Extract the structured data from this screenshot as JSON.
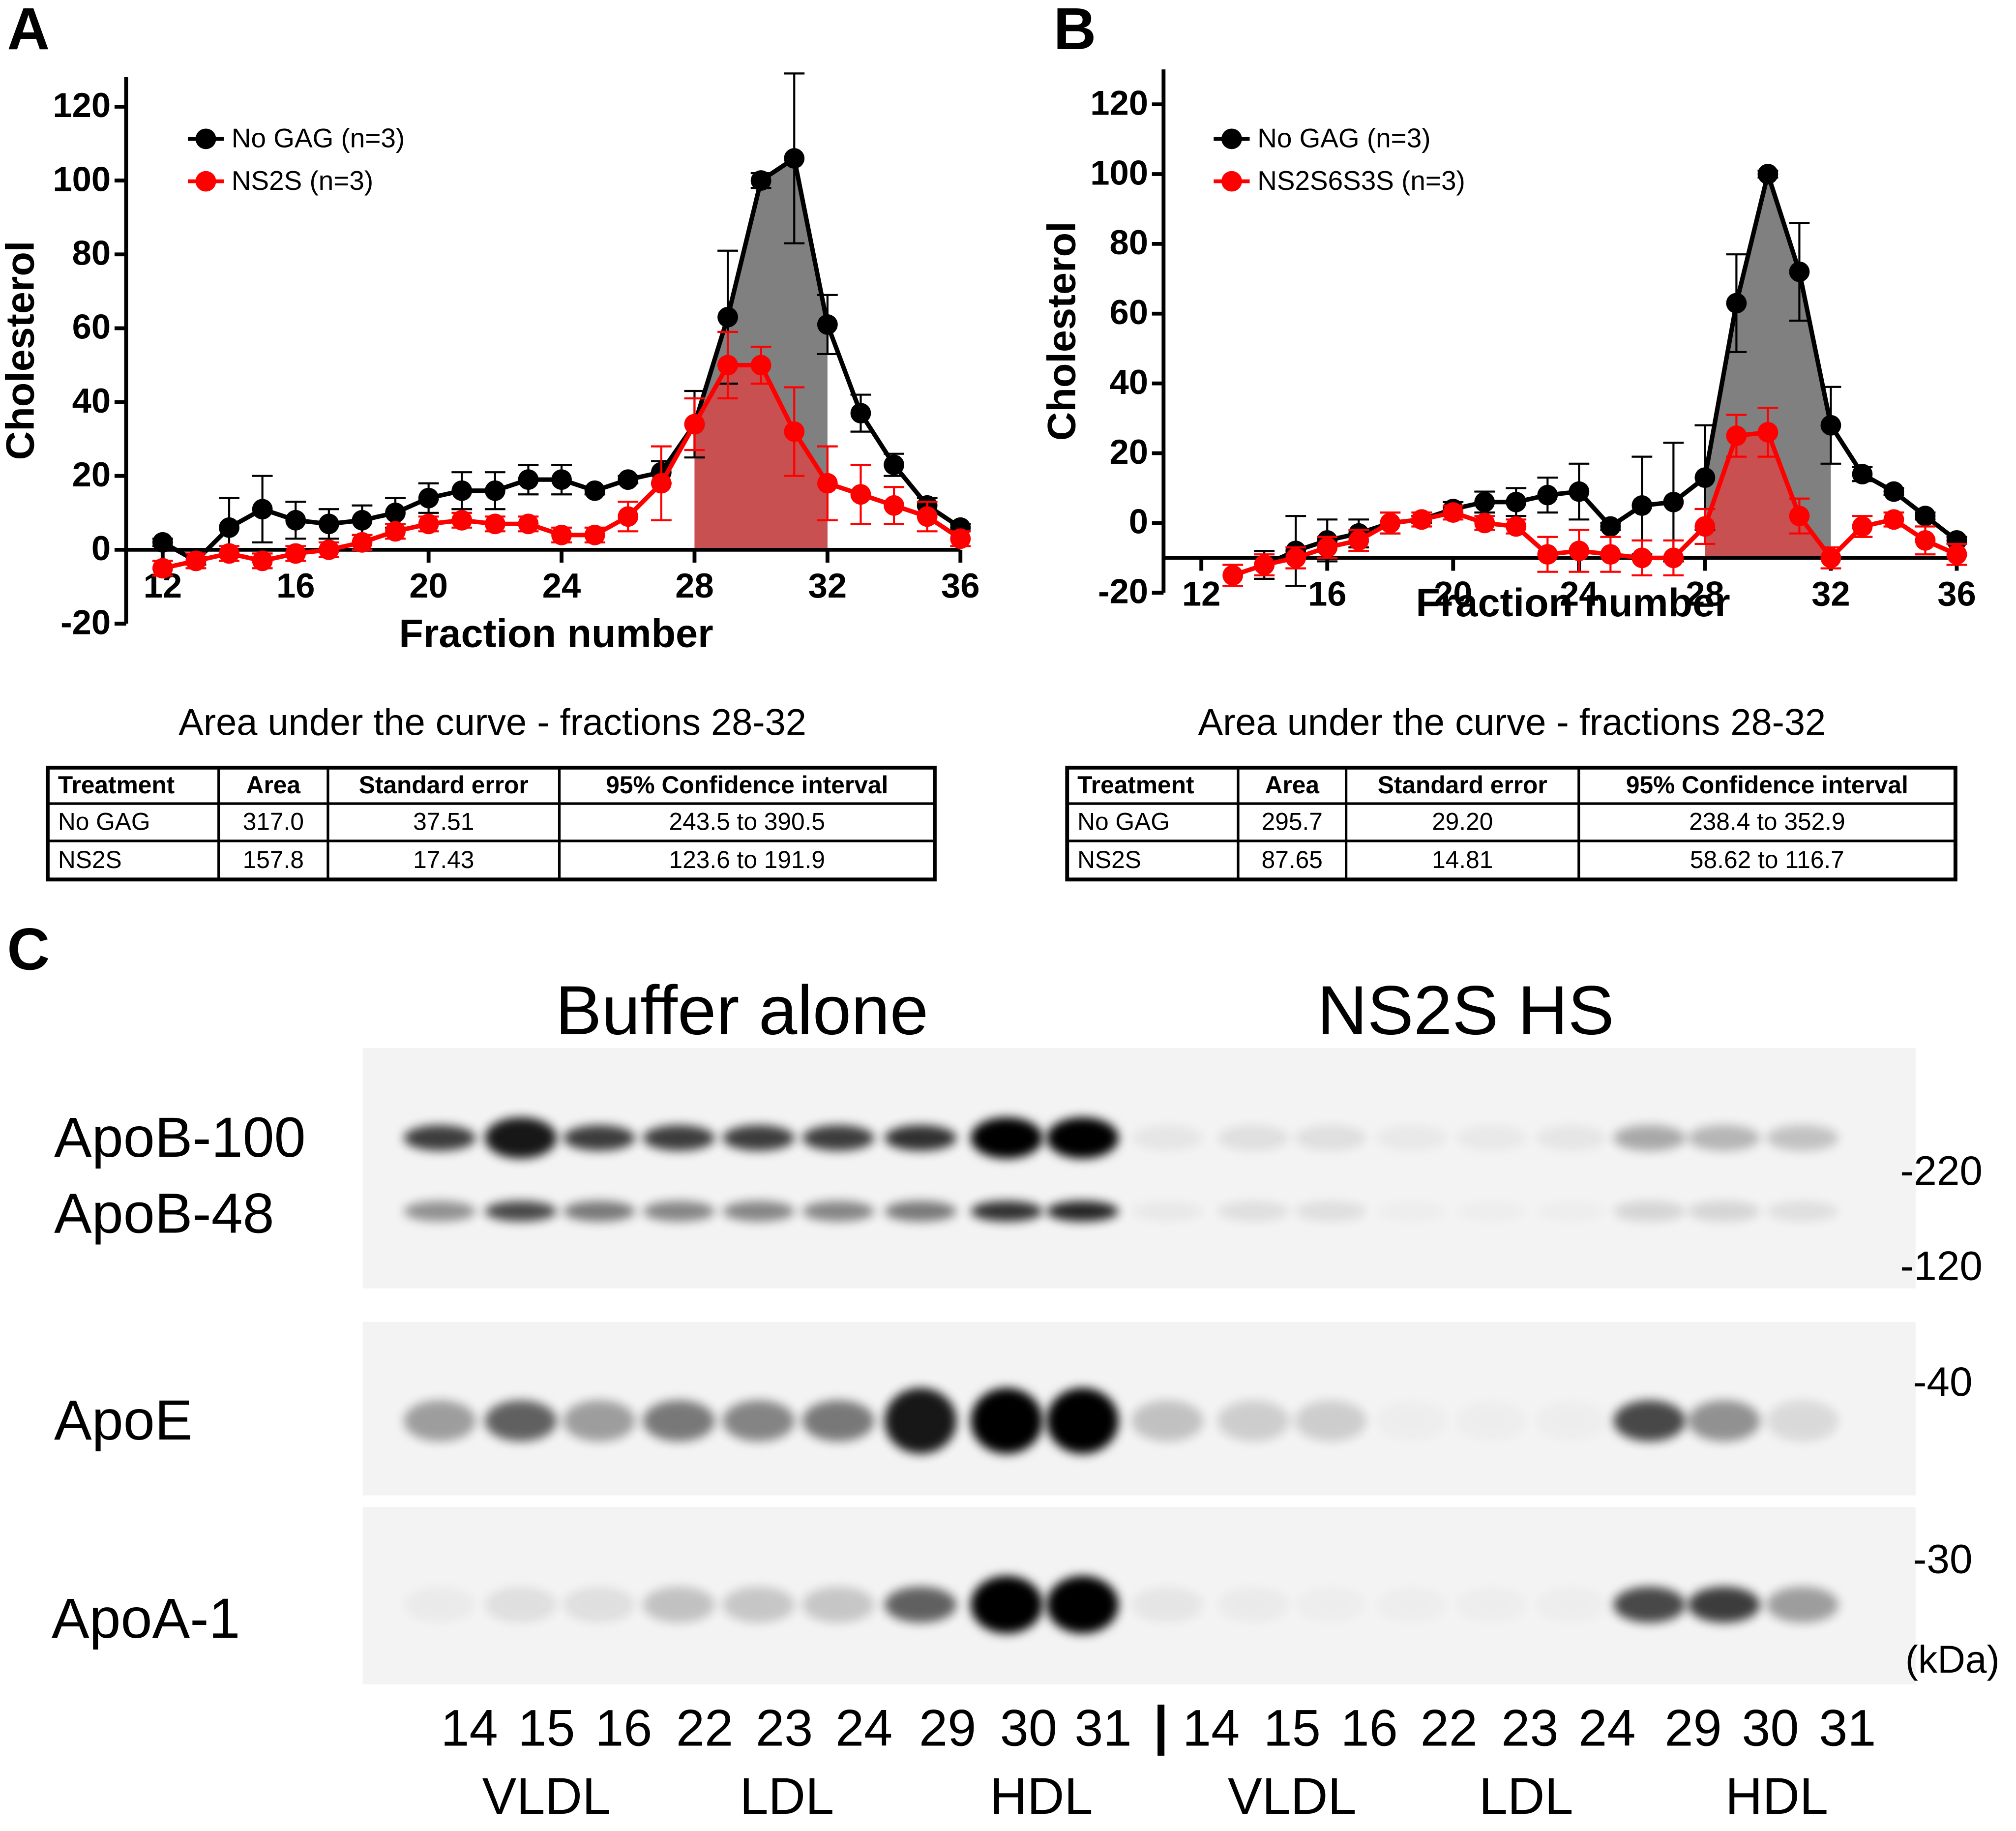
{
  "chart_data": [
    {
      "type": "line",
      "panel_label": "A",
      "y_label": "Cholesterol",
      "x_label": "Fraction number",
      "x": [
        12,
        13,
        14,
        15,
        16,
        17,
        18,
        19,
        20,
        21,
        22,
        23,
        24,
        25,
        26,
        27,
        28,
        29,
        30,
        31,
        32,
        33,
        34,
        35,
        36
      ],
      "series": [
        {
          "name": "No GAG (n=3)",
          "color": "#000000",
          "shade_color": "#808080",
          "values": [
            2,
            -3,
            6,
            11,
            8,
            7,
            8,
            10,
            14,
            16,
            16,
            19,
            19,
            16,
            19,
            21,
            34,
            63,
            100,
            106,
            61,
            37,
            23,
            12,
            6
          ],
          "errors": [
            1,
            1,
            8,
            9,
            5,
            4,
            4,
            4,
            4,
            5,
            5,
            4,
            4,
            1,
            1,
            3,
            9,
            18,
            2,
            23,
            8,
            5,
            3,
            2,
            1
          ]
        },
        {
          "name": "NS2S (n=3)",
          "color": "#ff0000",
          "shade_color": "#c85050",
          "values": [
            -5,
            -3,
            -1,
            -3,
            -1,
            0,
            2,
            5,
            7,
            8,
            7,
            7,
            4,
            4,
            9,
            18,
            34,
            50,
            50,
            32,
            18,
            15,
            12,
            9,
            3
          ],
          "errors": [
            2,
            2,
            2,
            2,
            2,
            2,
            2,
            2,
            2,
            2,
            2,
            2,
            2,
            2,
            4,
            10,
            7,
            9,
            5,
            12,
            10,
            8,
            5,
            4,
            2
          ]
        }
      ],
      "shaded_x": [
        28,
        32
      ],
      "xaxis_crossing": 0,
      "xlim": [
        10.9,
        36
      ],
      "ylim": [
        -20,
        128
      ],
      "xticks": [
        12,
        16,
        20,
        24,
        28,
        32,
        36
      ],
      "yticks": [
        -20,
        0,
        20,
        40,
        60,
        80,
        100,
        120
      ],
      "legend": "upper left"
    },
    {
      "type": "line",
      "panel_label": "B",
      "y_label": "Cholesterol",
      "x_label": "Fraction number",
      "x": [
        12,
        13,
        14,
        15,
        16,
        17,
        18,
        19,
        20,
        21,
        22,
        23,
        24,
        25,
        26,
        27,
        28,
        29,
        30,
        31,
        32,
        33,
        34,
        35,
        36
      ],
      "series": [
        {
          "name": "No GAG (n=3)",
          "color": "#000000",
          "shade_color": "#808080",
          "values": [
            null,
            null,
            -12,
            -8,
            -5,
            -3,
            0,
            1,
            4,
            6,
            6,
            8,
            9,
            -1,
            5,
            6,
            13,
            63,
            100,
            72,
            28,
            14,
            9,
            2,
            -5
          ],
          "errors": [
            null,
            null,
            4,
            10,
            6,
            4,
            3,
            1,
            2,
            3,
            4,
            5,
            8,
            1,
            14,
            17,
            15,
            14,
            1,
            14,
            11,
            2,
            1,
            1,
            1
          ]
        },
        {
          "name": "NS2S6S3S (n=3)",
          "color": "#ff0000",
          "shade_color": "#c85050",
          "values": [
            null,
            -15,
            -12,
            -10,
            -7,
            -5,
            0,
            1,
            3,
            0,
            -1,
            -9,
            -8,
            -9,
            -10,
            -10,
            -1,
            25,
            26,
            2,
            -10,
            -1,
            1,
            -5,
            -9
          ],
          "errors": [
            null,
            3,
            3,
            3,
            3,
            3,
            3,
            2,
            2,
            2,
            2,
            5,
            6,
            5,
            5,
            5,
            5,
            6,
            7,
            5,
            3,
            3,
            2,
            4,
            3
          ]
        }
      ],
      "shaded_x": [
        28,
        32
      ],
      "xaxis_crossing": -10,
      "xlim": [
        10.8,
        36
      ],
      "ylim": [
        -20,
        130
      ],
      "xticks": [
        12,
        16,
        20,
        24,
        28,
        32,
        36
      ],
      "yticks": [
        -20,
        0,
        20,
        40,
        60,
        80,
        100,
        120
      ],
      "legend": "upper left"
    }
  ],
  "tables": [
    {
      "title": "Area under the curve - fractions 28-32",
      "header": [
        "Treatment",
        "Area",
        "Standard error",
        "95% Confidence  interval"
      ],
      "rows": [
        [
          "No GAG",
          "317.0",
          "37.51",
          "243.5 to 390.5"
        ],
        [
          "NS2S",
          "157.8",
          "17.43",
          "123.6 to 191.9"
        ]
      ]
    },
    {
      "title": "Area under the curve - fractions 28-32",
      "header": [
        "Treatment",
        "Area",
        "Standard error",
        "95% Confidence  interval"
      ],
      "rows": [
        [
          "No GAG",
          "295.7",
          "29.20",
          "238.4 to 352.9"
        ],
        [
          "NS2S",
          "87.65",
          "14.81",
          "58.62 to 116.7"
        ]
      ]
    }
  ],
  "blot": {
    "panel_label": "C",
    "groups": [
      "Buffer alone",
      "NS2S HS"
    ],
    "proteins": [
      "ApoB-100",
      "ApoB-48",
      "ApoE",
      "ApoA-1"
    ],
    "markers": [
      "-220",
      "-120",
      "-40",
      "-30"
    ],
    "marker_unit": "(kDa)",
    "lanes": [
      "14",
      "15",
      "16",
      "22",
      "23",
      "24",
      "29",
      "30",
      "31",
      "14",
      "15",
      "16",
      "22",
      "23",
      "24",
      "29",
      "30",
      "31"
    ],
    "separator": "|",
    "fraction_groups": [
      "VLDL",
      "LDL",
      "HDL",
      "VLDL",
      "LDL",
      "HDL"
    ]
  }
}
